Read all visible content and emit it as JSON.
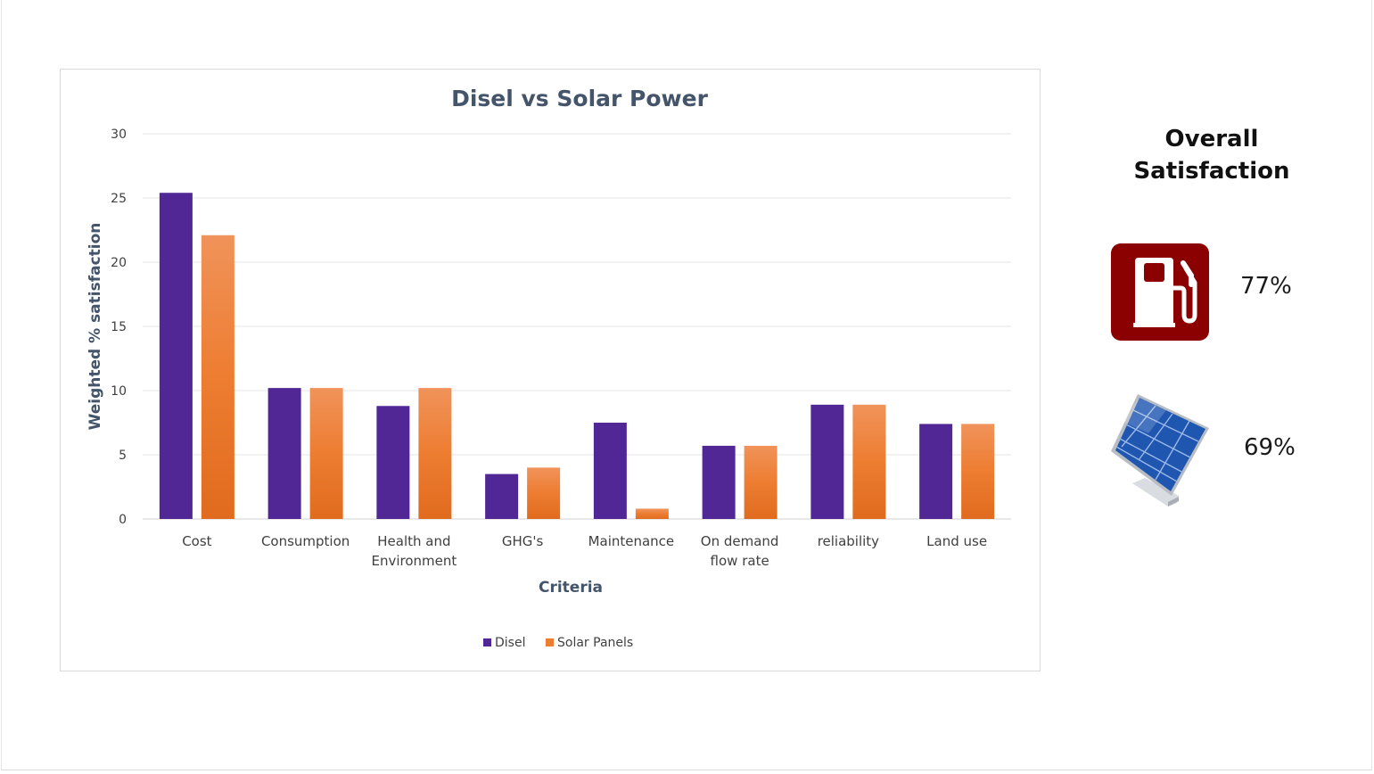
{
  "chart_data": {
    "type": "bar",
    "title": "Disel vs Solar Power",
    "xlabel": "Criteria",
    "ylabel": "Weighted % satisfaction",
    "ylim": [
      0,
      30
    ],
    "yticks": [
      0,
      5,
      10,
      15,
      20,
      25,
      30
    ],
    "grid": true,
    "legend_position": "bottom",
    "categories": [
      [
        "Cost"
      ],
      [
        "Consumption"
      ],
      [
        "Health and",
        "Environment"
      ],
      [
        "GHG's"
      ],
      [
        "Maintenance"
      ],
      [
        "On demand",
        "flow rate"
      ],
      [
        "reliability"
      ],
      [
        "Land use"
      ]
    ],
    "series": [
      {
        "name": "Disel",
        "color": "#512796",
        "values": [
          25.4,
          10.2,
          8.8,
          3.5,
          7.5,
          5.7,
          8.9,
          7.4
        ]
      },
      {
        "name": "Solar Panels",
        "color": "#ed7d31",
        "values": [
          22.1,
          10.2,
          10.2,
          4.0,
          0.8,
          5.7,
          8.9,
          7.4
        ]
      }
    ]
  },
  "summary": {
    "title_lines": [
      "Overall",
      "Satisfaction"
    ],
    "items": [
      {
        "icon": "fuel-pump-icon",
        "value": "77%",
        "color": "#8b0000"
      },
      {
        "icon": "solar-panel-icon",
        "value": "69%",
        "color": "#2a5cae"
      }
    ]
  }
}
